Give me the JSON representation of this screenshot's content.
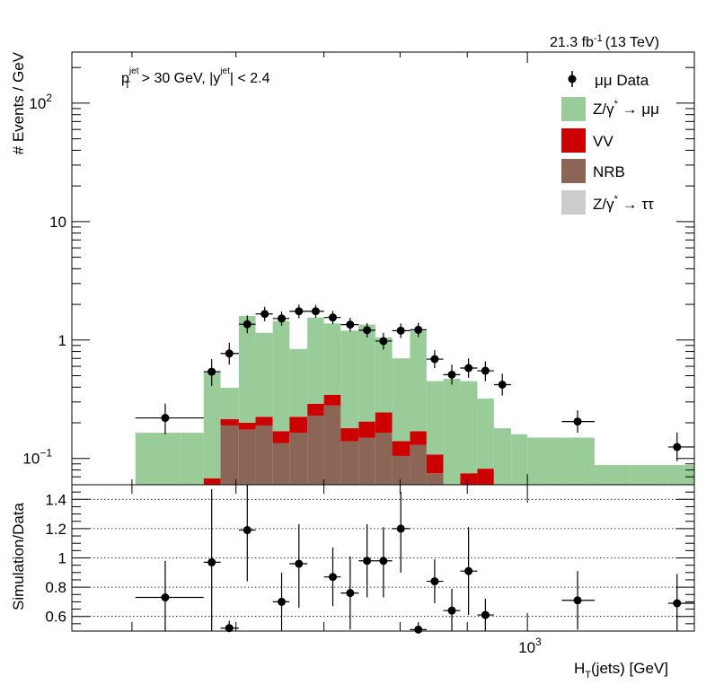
{
  "colors": {
    "zmumu": "#99cc99",
    "vv": "#cc0000",
    "nrb": "#8b6656",
    "ztautau": "#cccccc",
    "data": "#000000"
  },
  "chart_data": [
    {
      "type": "bar",
      "panel": "top",
      "ylabel": "# Events / GeV",
      "yscale": "log",
      "ylim": [
        0.06,
        270
      ],
      "xlim": [
        450,
        1340
      ],
      "xscale": "log",
      "annotations": {
        "lumi": "21.3 fb",
        "lumi_sup": "-1",
        "energy": "(13 TeV)",
        "cut_pt_var": "p",
        "cut_pt_sub": "T",
        "cut_pt_sup": "jet",
        "cut_pt_rest": " > 30 GeV,  |y",
        "cut_y_sup": "jet",
        "cut_y_rest": "| < 2.4"
      },
      "yticks": [
        {
          "v": 0.1,
          "label": "10",
          "sup": "−1"
        },
        {
          "v": 1,
          "label": "1",
          "sup": ""
        },
        {
          "v": 10,
          "label": "10",
          "sup": ""
        },
        {
          "v": 100,
          "label": "10",
          "sup": "2"
        }
      ],
      "legend": {
        "placement": "top-right",
        "entries": [
          {
            "key": "data",
            "label": "μμ Data"
          },
          {
            "key": "zmumu",
            "label": "Z/γ",
            "sup": "*",
            "suffix": " → μμ"
          },
          {
            "key": "vv",
            "label": "VV"
          },
          {
            "key": "nrb",
            "label": "NRB"
          },
          {
            "key": "ztautau",
            "label": "Z/γ",
            "sup": "*",
            "suffix": " → ττ"
          }
        ]
      },
      "bin_edges": [
        503,
        545,
        567,
        584,
        603,
        621,
        640,
        659,
        680,
        700,
        721,
        744,
        766,
        789,
        814,
        838,
        863,
        889,
        916,
        943,
        972,
        1000,
        1030,
        1062,
        1125,
        1200,
        1280,
        1340
      ],
      "stack": {
        "nrb": [
          0,
          0,
          0.06,
          0.19,
          0.175,
          0.19,
          0.135,
          0.165,
          0.23,
          0.28,
          0.14,
          0.15,
          0.165,
          0.105,
          0.13,
          0.075,
          0,
          0,
          0,
          0,
          0,
          0,
          0,
          0,
          0,
          0,
          0
        ],
        "vv": [
          0,
          0,
          0.068,
          0.215,
          0.2,
          0.225,
          0.17,
          0.225,
          0.29,
          0.345,
          0.18,
          0.205,
          0.245,
          0.14,
          0.17,
          0.108,
          0,
          0.075,
          0.082,
          0,
          0,
          0,
          0,
          0,
          0,
          0,
          0
        ],
        "zmumu": [
          0.165,
          0.165,
          0.53,
          0.395,
          1.6,
          1.15,
          1.45,
          0.84,
          1.55,
          1.38,
          1.2,
          1.35,
          1.05,
          0.7,
          1.2,
          0.45,
          0.47,
          0.45,
          0.32,
          0.18,
          0.16,
          0.15,
          0.15,
          0.15,
          0.088,
          0.088,
          0.088
        ]
      },
      "data_points": [
        {
          "x": 530,
          "y": 0.22,
          "yerr_up": 0.07,
          "yerr_dn": 0.06,
          "xlo": 503,
          "xhi": 567
        },
        {
          "x": 575,
          "y": 0.54,
          "yerr_up": 0.15,
          "yerr_dn": 0.13,
          "xlo": 567,
          "xhi": 584
        },
        {
          "x": 593,
          "y": 0.77,
          "yerr_up": 0.18,
          "yerr_dn": 0.15,
          "xlo": 584,
          "xhi": 603
        },
        {
          "x": 612,
          "y": 1.36,
          "yerr_up": 0.25,
          "yerr_dn": 0.22,
          "xlo": 603,
          "xhi": 621
        },
        {
          "x": 631,
          "y": 1.66,
          "yerr_up": 0.25,
          "yerr_dn": 0.22,
          "xlo": 621,
          "xhi": 640
        },
        {
          "x": 650,
          "y": 1.52,
          "yerr_up": 0.22,
          "yerr_dn": 0.2,
          "xlo": 640,
          "xhi": 659
        },
        {
          "x": 670,
          "y": 1.75,
          "yerr_up": 0.24,
          "yerr_dn": 0.22,
          "xlo": 659,
          "xhi": 680
        },
        {
          "x": 690,
          "y": 1.75,
          "yerr_up": 0.23,
          "yerr_dn": 0.21,
          "xlo": 680,
          "xhi": 700
        },
        {
          "x": 711,
          "y": 1.55,
          "yerr_up": 0.21,
          "yerr_dn": 0.19,
          "xlo": 700,
          "xhi": 721
        },
        {
          "x": 733,
          "y": 1.35,
          "yerr_up": 0.19,
          "yerr_dn": 0.17,
          "xlo": 721,
          "xhi": 744
        },
        {
          "x": 755,
          "y": 1.21,
          "yerr_up": 0.18,
          "yerr_dn": 0.16,
          "xlo": 744,
          "xhi": 766
        },
        {
          "x": 777,
          "y": 0.98,
          "yerr_up": 0.17,
          "yerr_dn": 0.15,
          "xlo": 766,
          "xhi": 789
        },
        {
          "x": 801,
          "y": 1.2,
          "yerr_up": 0.18,
          "yerr_dn": 0.16,
          "xlo": 789,
          "xhi": 814
        },
        {
          "x": 826,
          "y": 1.22,
          "yerr_up": 0.18,
          "yerr_dn": 0.16,
          "xlo": 814,
          "xhi": 838
        },
        {
          "x": 850,
          "y": 0.69,
          "yerr_up": 0.13,
          "yerr_dn": 0.11,
          "xlo": 838,
          "xhi": 863
        },
        {
          "x": 876,
          "y": 0.51,
          "yerr_up": 0.11,
          "yerr_dn": 0.09,
          "xlo": 863,
          "xhi": 889
        },
        {
          "x": 902,
          "y": 0.58,
          "yerr_up": 0.12,
          "yerr_dn": 0.1,
          "xlo": 889,
          "xhi": 916
        },
        {
          "x": 929,
          "y": 0.55,
          "yerr_up": 0.11,
          "yerr_dn": 0.1,
          "xlo": 916,
          "xhi": 943
        },
        {
          "x": 957,
          "y": 0.42,
          "yerr_up": 0.1,
          "yerr_dn": 0.08,
          "xlo": 943,
          "xhi": 972
        },
        {
          "x": 1092,
          "y": 0.205,
          "yerr_up": 0.05,
          "yerr_dn": 0.04,
          "xlo": 1062,
          "xhi": 1125
        },
        {
          "x": 1300,
          "y": 0.125,
          "yerr_up": 0.04,
          "yerr_dn": 0.03,
          "xlo": 1280,
          "xhi": 1340
        }
      ]
    },
    {
      "type": "scatter",
      "panel": "bottom",
      "ylabel": "Simulation/Data",
      "xlabel": "H",
      "xlabel_sub": "T",
      "xlabel_rest": "(jets) [GeV]",
      "ylim": [
        0.5,
        1.5
      ],
      "xlim": [
        450,
        1340
      ],
      "xscale": "log",
      "yticks": [
        {
          "v": 0.6,
          "label": "0.6"
        },
        {
          "v": 0.8,
          "label": "0.8"
        },
        {
          "v": 1.0,
          "label": "1"
        },
        {
          "v": 1.2,
          "label": "1.2"
        },
        {
          "v": 1.4,
          "label": "1.4"
        }
      ],
      "xticks": [
        {
          "v": 1000,
          "label": "10",
          "sup": "3"
        }
      ],
      "gridlines_y": [
        0.6,
        0.8,
        1.0,
        1.2,
        1.4
      ],
      "points": [
        {
          "x": 530,
          "y": 0.73,
          "err_up": 0.25,
          "err_dn": 0.25,
          "xlo": 503,
          "xhi": 567
        },
        {
          "x": 575,
          "y": 0.97,
          "err_up": 0.5,
          "err_dn": 0.5,
          "xlo": 567,
          "xhi": 584
        },
        {
          "x": 593,
          "y": 0.52,
          "err_up": 0.05,
          "err_dn": 0.05,
          "xlo": 584,
          "xhi": 603
        },
        {
          "x": 612,
          "y": 1.19,
          "err_up": 0.31,
          "err_dn": 0.35,
          "xlo": 603,
          "xhi": 621
        },
        {
          "x": 650,
          "y": 0.7,
          "err_up": 0.2,
          "err_dn": 0.2,
          "xlo": 640,
          "xhi": 659
        },
        {
          "x": 670,
          "y": 0.96,
          "err_up": 0.27,
          "err_dn": 0.3,
          "xlo": 659,
          "xhi": 680
        },
        {
          "x": 711,
          "y": 0.87,
          "err_up": 0.2,
          "err_dn": 0.2,
          "xlo": 700,
          "xhi": 721
        },
        {
          "x": 733,
          "y": 0.76,
          "err_up": 0.25,
          "err_dn": 0.25,
          "xlo": 721,
          "xhi": 744
        },
        {
          "x": 755,
          "y": 0.98,
          "err_up": 0.25,
          "err_dn": 0.25,
          "xlo": 744,
          "xhi": 766
        },
        {
          "x": 777,
          "y": 0.98,
          "err_up": 0.23,
          "err_dn": 0.25,
          "xlo": 766,
          "xhi": 789
        },
        {
          "x": 801,
          "y": 1.2,
          "err_up": 0.25,
          "err_dn": 0.3,
          "xlo": 789,
          "xhi": 814
        },
        {
          "x": 826,
          "y": 0.51,
          "err_up": 0.05,
          "err_dn": 0.05,
          "xlo": 814,
          "xhi": 838
        },
        {
          "x": 850,
          "y": 0.84,
          "err_up": 0.15,
          "err_dn": 0.15,
          "xlo": 838,
          "xhi": 863
        },
        {
          "x": 876,
          "y": 0.64,
          "err_up": 0.15,
          "err_dn": 0.15,
          "xlo": 863,
          "xhi": 889
        },
        {
          "x": 902,
          "y": 0.91,
          "err_up": 0.3,
          "err_dn": 0.3,
          "xlo": 889,
          "xhi": 916
        },
        {
          "x": 929,
          "y": 0.61,
          "err_up": 0.11,
          "err_dn": 0.11,
          "xlo": 916,
          "xhi": 943
        },
        {
          "x": 1092,
          "y": 0.71,
          "err_up": 0.2,
          "err_dn": 0.2,
          "xlo": 1062,
          "xhi": 1125
        },
        {
          "x": 1300,
          "y": 0.69,
          "err_up": 0.2,
          "err_dn": 0.2,
          "xlo": 1280,
          "xhi": 1340
        }
      ]
    }
  ]
}
